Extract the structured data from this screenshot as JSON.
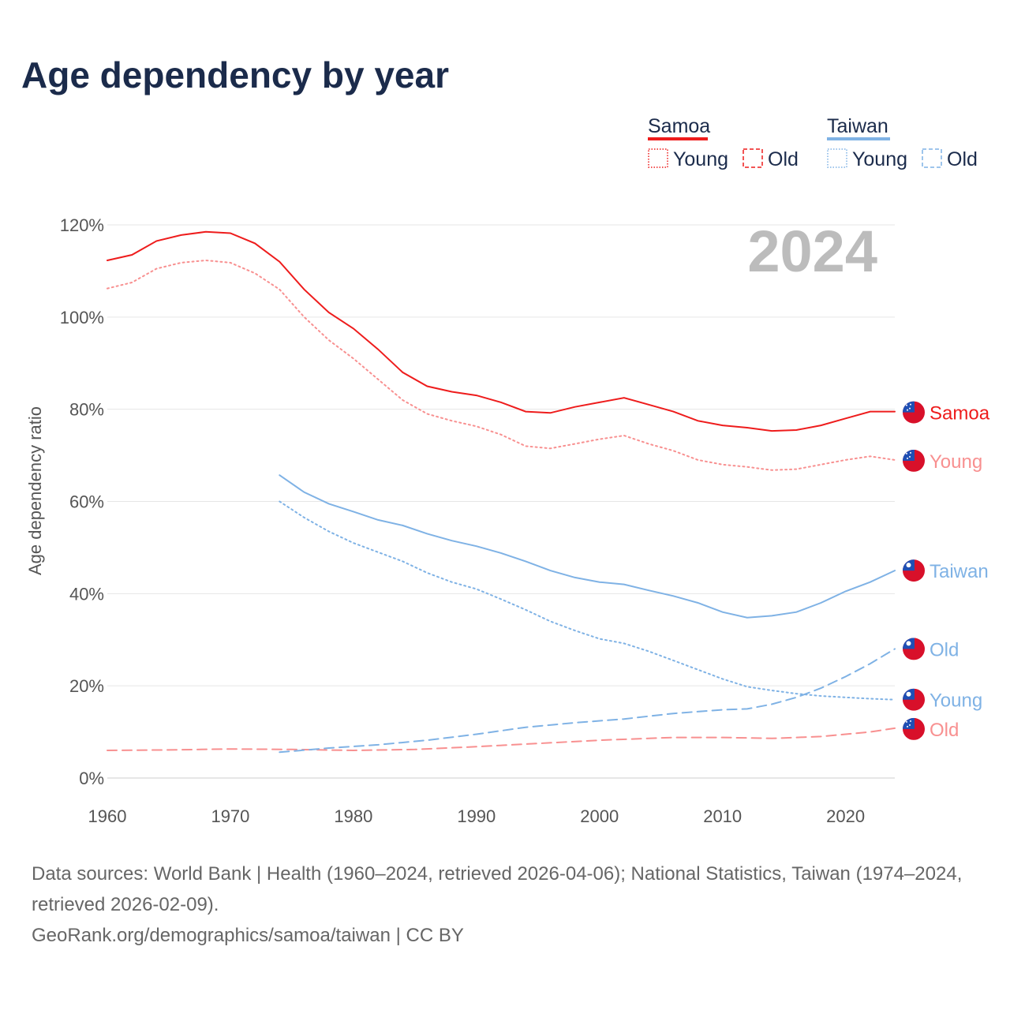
{
  "chart_data": {
    "type": "line",
    "title": "Age dependency by year",
    "ylabel": "Age dependency ratio",
    "xlabel": "",
    "xlim": [
      1960,
      2024
    ],
    "ylim": [
      0,
      120
    ],
    "x_ticks": [
      "1960",
      "1970",
      "1980",
      "1990",
      "2000",
      "2010",
      "2020"
    ],
    "x_tick_values": [
      1960,
      1970,
      1980,
      1990,
      2000,
      2010,
      2020
    ],
    "y_ticks": [
      "0%",
      "20%",
      "40%",
      "60%",
      "80%",
      "100%",
      "120%"
    ],
    "y_tick_values": [
      0,
      20,
      40,
      60,
      80,
      100,
      120
    ],
    "year_label": "2024",
    "grid": true,
    "legend": {
      "placement": "top-right",
      "groups": [
        {
          "name": "Samoa",
          "color": "#ee1c1c",
          "items": [
            "Young",
            "Old"
          ]
        },
        {
          "name": "Taiwan",
          "color": "#7fb2e5",
          "items": [
            "Young",
            "Old"
          ]
        }
      ]
    },
    "series": [
      {
        "name": "Samoa",
        "country": "Samoa",
        "kind": "total",
        "color": "#ee1c1c",
        "dash": "solid",
        "end_label": "Samoa",
        "x": [
          1960,
          1962,
          1964,
          1966,
          1968,
          1970,
          1972,
          1974,
          1976,
          1978,
          1980,
          1982,
          1984,
          1986,
          1988,
          1990,
          1992,
          1994,
          1996,
          1998,
          2000,
          2002,
          2004,
          2006,
          2008,
          2010,
          2012,
          2014,
          2016,
          2018,
          2020,
          2022,
          2024
        ],
        "values": [
          112.3,
          113.5,
          116.5,
          117.8,
          118.5,
          118.2,
          116,
          112,
          106,
          101,
          97.5,
          93,
          88,
          85,
          83.8,
          83,
          81.5,
          79.5,
          79.2,
          80.5,
          81.5,
          82.5,
          81,
          79.5,
          77.5,
          76.5,
          76,
          75.3,
          75.5,
          76.5,
          78,
          79.5,
          79.5
        ]
      },
      {
        "name": "Young",
        "country": "Samoa",
        "kind": "young",
        "color": "#f89090",
        "dash": "dotted",
        "end_label": "Young",
        "x": [
          1960,
          1962,
          1964,
          1966,
          1968,
          1970,
          1972,
          1974,
          1976,
          1978,
          1980,
          1982,
          1984,
          1986,
          1988,
          1990,
          1992,
          1994,
          1996,
          1998,
          2000,
          2002,
          2004,
          2006,
          2008,
          2010,
          2012,
          2014,
          2016,
          2018,
          2020,
          2022,
          2024
        ],
        "values": [
          106.2,
          107.5,
          110.5,
          111.8,
          112.3,
          111.8,
          109.5,
          106,
          100,
          95,
          91,
          86.5,
          82,
          79,
          77.5,
          76.3,
          74.5,
          72,
          71.5,
          72.5,
          73.5,
          74.3,
          72.5,
          71,
          69,
          68,
          67.5,
          66.8,
          67,
          68,
          69,
          69.8,
          69
        ]
      },
      {
        "name": "Old",
        "country": "Samoa",
        "kind": "old",
        "color": "#f89090",
        "dash": "dashed",
        "end_label": "Old",
        "x": [
          1960,
          1965,
          1970,
          1975,
          1980,
          1985,
          1990,
          1995,
          2000,
          2006,
          2010,
          2014,
          2018,
          2022,
          2024
        ],
        "values": [
          6,
          6.1,
          6.3,
          6.2,
          6,
          6.2,
          6.8,
          7.5,
          8.2,
          8.8,
          8.8,
          8.6,
          9,
          10,
          10.8
        ]
      },
      {
        "name": "Taiwan",
        "country": "Taiwan",
        "kind": "total",
        "color": "#7fb2e5",
        "dash": "solid",
        "end_label": "Taiwan",
        "x": [
          1974,
          1976,
          1978,
          1980,
          1982,
          1984,
          1986,
          1988,
          1990,
          1992,
          1994,
          1996,
          1998,
          2000,
          2002,
          2004,
          2006,
          2008,
          2010,
          2012,
          2014,
          2016,
          2018,
          2020,
          2022,
          2024
        ],
        "values": [
          65.7,
          62,
          59.5,
          57.8,
          56,
          54.8,
          53,
          51.5,
          50.3,
          48.8,
          47,
          45,
          43.5,
          42.5,
          42,
          40.7,
          39.5,
          38,
          36,
          34.8,
          35.2,
          36,
          38,
          40.5,
          42.5,
          45
        ]
      },
      {
        "name": "Young",
        "country": "Taiwan",
        "kind": "young",
        "color": "#7fb2e5",
        "dash": "dotted",
        "end_label": "Young",
        "x": [
          1974,
          1976,
          1978,
          1980,
          1982,
          1984,
          1986,
          1988,
          1990,
          1992,
          1994,
          1996,
          1998,
          2000,
          2002,
          2004,
          2006,
          2008,
          2010,
          2012,
          2014,
          2016,
          2018,
          2020,
          2022,
          2024
        ],
        "values": [
          60,
          56.5,
          53.5,
          51,
          49,
          47,
          44.5,
          42.5,
          41,
          38.8,
          36.5,
          34,
          32,
          30.2,
          29.2,
          27.5,
          25.5,
          23.5,
          21.5,
          19.8,
          19,
          18.3,
          17.8,
          17.5,
          17.2,
          17
        ]
      },
      {
        "name": "Old",
        "country": "Taiwan",
        "kind": "old",
        "color": "#7fb2e5",
        "dash": "dashed",
        "end_label": "Old",
        "x": [
          1974,
          1978,
          1982,
          1986,
          1990,
          1994,
          1998,
          2002,
          2006,
          2010,
          2012,
          2014,
          2016,
          2018,
          2020,
          2022,
          2024
        ],
        "values": [
          5.6,
          6.5,
          7.2,
          8.2,
          9.5,
          11,
          12,
          12.8,
          14,
          14.8,
          15,
          16,
          17.5,
          19.5,
          22,
          24.8,
          28
        ]
      }
    ]
  },
  "footer": {
    "sources": "Data sources: World Bank | Health (1960–2024, retrieved 2026-04-06); National Statistics, Taiwan (1974–2024, retrieved 2026-02-09).",
    "link": "GeoRank.org/demographics/samoa/taiwan | CC BY"
  }
}
